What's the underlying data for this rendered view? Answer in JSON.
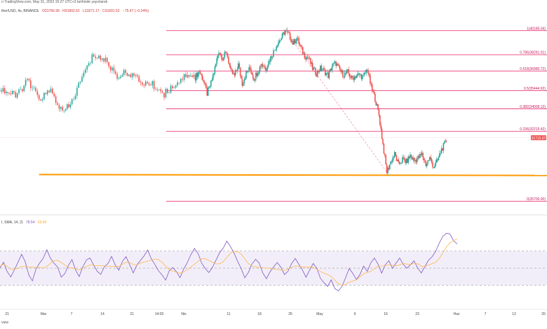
{
  "caption": "n TradingView.com, May 31, 2022 15:27 UTC+3 tarihinde yayınlandı",
  "symbol": "ther/USD, 4s, BINANCE",
  "ohlc": {
    "open": "O31766.99",
    "high": "H31802.62",
    "low": "L31671.17",
    "close": "C31691.52",
    "change": "−75.47 (−0.24%)"
  },
  "rsi": {
    "label": "I, SMA, 14, 2)",
    "value": "78.54",
    "ma": "69.40"
  },
  "rsi_hint": "view",
  "colors": {
    "up": "#26a69a",
    "down": "#ef5350",
    "fib": "#e91e63",
    "trend": "#ff9800",
    "rsi": "#7e57c2",
    "rsi_ma": "#ffb74d",
    "badge": "#ef5350"
  },
  "price_badge": "31715.07",
  "chart_data": {
    "type": "candlestick",
    "x_ticks": [
      "21",
      "Mar",
      "7",
      "14",
      "21",
      "14:00",
      "Nis",
      "11",
      "18",
      "25",
      "May",
      "9",
      "16",
      "23",
      "Haz",
      "7",
      "13",
      "20"
    ],
    "fib_levels": [
      {
        "label": "1(40185.04)",
        "ratio": 1,
        "price": 40185.04
      },
      {
        "label": "0.786(38281.01)",
        "ratio": 0.786,
        "price": 38281.01
      },
      {
        "label": "0.618(36980.72)",
        "ratio": 0.618,
        "price": 36980.72
      },
      {
        "label": "0.5(35444.92)",
        "ratio": 0.5,
        "price": 35444.92
      },
      {
        "label": "0.382(34009.12)",
        "ratio": 0.382,
        "price": 34009.12
      },
      {
        "label": "0.236(32215.42)",
        "ratio": 0.236,
        "price": 32215.42
      },
      {
        "label": "0(26700.00)",
        "ratio": 0,
        "price": 26700.0
      }
    ],
    "price_path": [
      [
        0,
        36500
      ],
      [
        2,
        37000
      ],
      [
        4,
        36300
      ],
      [
        6,
        35200
      ],
      [
        8,
        36000
      ],
      [
        10,
        37200
      ],
      [
        12,
        38600
      ],
      [
        14,
        38000
      ],
      [
        16,
        38500
      ],
      [
        18,
        37000
      ],
      [
        20,
        36600
      ],
      [
        22,
        37500
      ],
      [
        24,
        36000
      ],
      [
        26,
        36800
      ],
      [
        28,
        37200
      ],
      [
        30,
        36400
      ],
      [
        32,
        37000
      ],
      [
        34,
        37600
      ],
      [
        36,
        37200
      ],
      [
        38,
        37900
      ],
      [
        40,
        38500
      ],
      [
        42,
        39200
      ],
      [
        44,
        39600
      ],
      [
        46,
        40185
      ],
      [
        48,
        39800
      ],
      [
        50,
        39200
      ],
      [
        52,
        39600
      ],
      [
        54,
        38800
      ],
      [
        56,
        38200
      ],
      [
        58,
        38000
      ],
      [
        60,
        37200
      ],
      [
        62,
        36800
      ],
      [
        64,
        37200
      ],
      [
        66,
        37000
      ],
      [
        68,
        36600
      ],
      [
        70,
        37400
      ],
      [
        72,
        37600
      ],
      [
        74,
        37000
      ],
      [
        76,
        36700
      ],
      [
        78,
        36900
      ],
      [
        80,
        36400
      ],
      [
        82,
        36600
      ],
      [
        84,
        36700
      ],
      [
        86,
        36500
      ],
      [
        88,
        37200
      ],
      [
        90,
        35700
      ],
      [
        92,
        34800
      ],
      [
        94,
        33500
      ],
      [
        96,
        31200
      ],
      [
        98,
        29000
      ],
      [
        100,
        29800
      ],
      [
        102,
        30400
      ],
      [
        104,
        29600
      ],
      [
        106,
        30000
      ],
      [
        108,
        29800
      ],
      [
        110,
        30300
      ],
      [
        112,
        29900
      ],
      [
        114,
        30100
      ],
      [
        116,
        30400
      ],
      [
        118,
        29600
      ],
      [
        120,
        30100
      ],
      [
        122,
        29400
      ],
      [
        124,
        29900
      ],
      [
        126,
        30800
      ],
      [
        128,
        31300
      ],
      [
        129,
        31715
      ]
    ],
    "trend_line": {
      "from": [
        -80,
        28800
      ],
      "to": [
        300,
        28700
      ]
    },
    "rsi_series": [
      52,
      58,
      46,
      38,
      49,
      56,
      66,
      58,
      42,
      36,
      48,
      55,
      62,
      70,
      63,
      55,
      50,
      40,
      45,
      52,
      60,
      48,
      42,
      52,
      58,
      63,
      55,
      48,
      42,
      50,
      56,
      62,
      54,
      48,
      58,
      64,
      55,
      46,
      52,
      60,
      66,
      70,
      62,
      54,
      48,
      42,
      38,
      46,
      52,
      46,
      40,
      50,
      56,
      64,
      72,
      66,
      58,
      50,
      44,
      52,
      60,
      67,
      72,
      80,
      74,
      66,
      58,
      48,
      40,
      46,
      56,
      62,
      54,
      45,
      38,
      44,
      52,
      58,
      50,
      42,
      48,
      56,
      62,
      55,
      46,
      40,
      48,
      55,
      48,
      40,
      34,
      30,
      36,
      28,
      22,
      30,
      40,
      48,
      42,
      36,
      44,
      52,
      48,
      56,
      60,
      54,
      46,
      52,
      58,
      50,
      56,
      62,
      55,
      48,
      54,
      60,
      52,
      46,
      52,
      58,
      64,
      70,
      78,
      86,
      92,
      88,
      82,
      78
    ],
    "rsi_levels": [
      70,
      50,
      30
    ],
    "rsi_ylim": [
      10,
      100
    ],
    "ylim": [
      26000,
      41500
    ],
    "xlim": [
      -100,
      180
    ]
  }
}
